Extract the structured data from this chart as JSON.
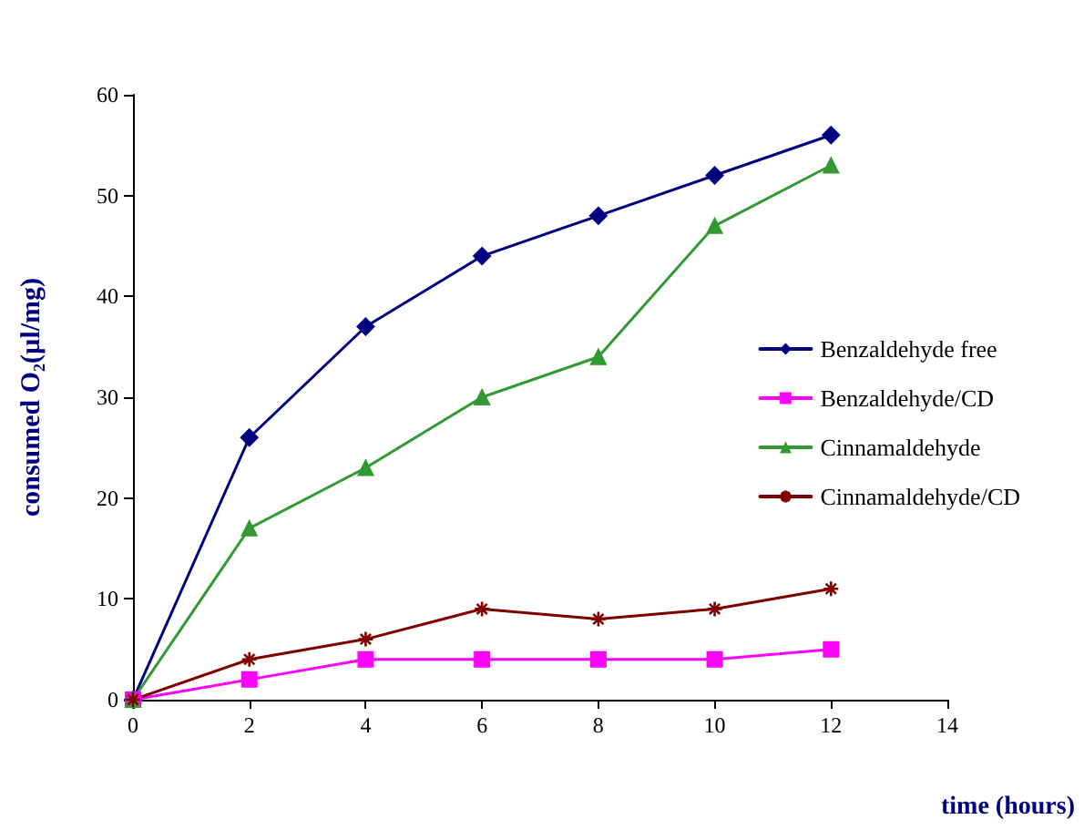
{
  "chart_data": {
    "type": "line",
    "xlabel": "time (hours)",
    "ylabel": "consumed O₂(µl/mg)",
    "x": [
      0,
      2,
      4,
      6,
      8,
      10,
      12
    ],
    "series": [
      {
        "name": "Benzaldehyde free",
        "color": "#000080",
        "marker": "diamond",
        "values": [
          0,
          26,
          37,
          44,
          48,
          52,
          56
        ]
      },
      {
        "name": "Benzaldehyde/CD",
        "color": "#ff00ff",
        "marker": "square",
        "values": [
          0,
          2,
          4,
          4,
          4,
          4,
          5
        ]
      },
      {
        "name": "Cinnamaldehyde",
        "color": "#339933",
        "marker": "triangle",
        "values": [
          0,
          17,
          23,
          30,
          34,
          47,
          53
        ]
      },
      {
        "name": "Cinnamaldehyde/CD",
        "color": "#800000",
        "marker": "cross",
        "values": [
          0,
          4,
          6,
          9,
          8,
          9,
          11
        ]
      }
    ],
    "xlim": [
      0,
      14
    ],
    "xticks": [
      0,
      2,
      4,
      6,
      8,
      10,
      12,
      14
    ],
    "ylim": [
      0,
      60
    ],
    "yticks": [
      0,
      10,
      20,
      30,
      40,
      50,
      60
    ],
    "grid": false,
    "legend": "right",
    "line_style": "solid"
  }
}
